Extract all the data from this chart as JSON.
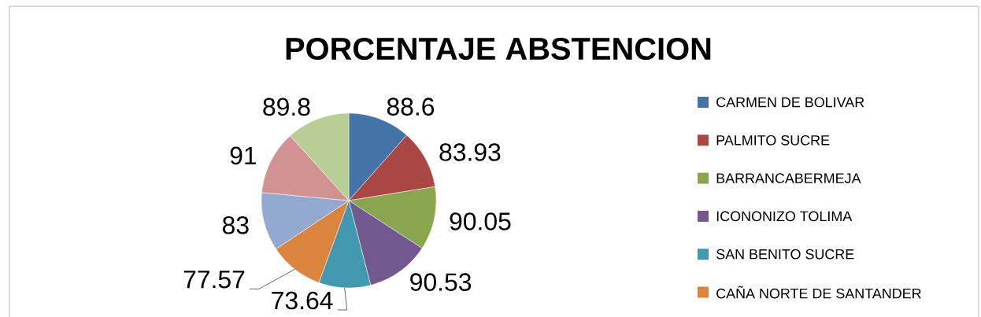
{
  "chart_data": {
    "type": "pie",
    "title": "PORCENTAJE ABSTENCION",
    "categories": [
      "CARMEN DE BOLIVAR",
      "PALMITO SUCRE",
      "BARRANCABERMEJA",
      "ICONONIZO TOLIMA",
      "SAN BENITO SUCRE",
      "CAÑA NORTE DE SANTANDER",
      null,
      null,
      null
    ],
    "values": [
      88.6,
      83.93,
      90.05,
      90.53,
      73.64,
      77.57,
      83,
      91,
      89.8
    ],
    "colors": [
      "#4572a7",
      "#aa4643",
      "#89a54e",
      "#71588f",
      "#4198af",
      "#db843d",
      "#93a9cf",
      "#d19392",
      "#b9cd96"
    ],
    "data_labels": true,
    "legend": "right"
  }
}
